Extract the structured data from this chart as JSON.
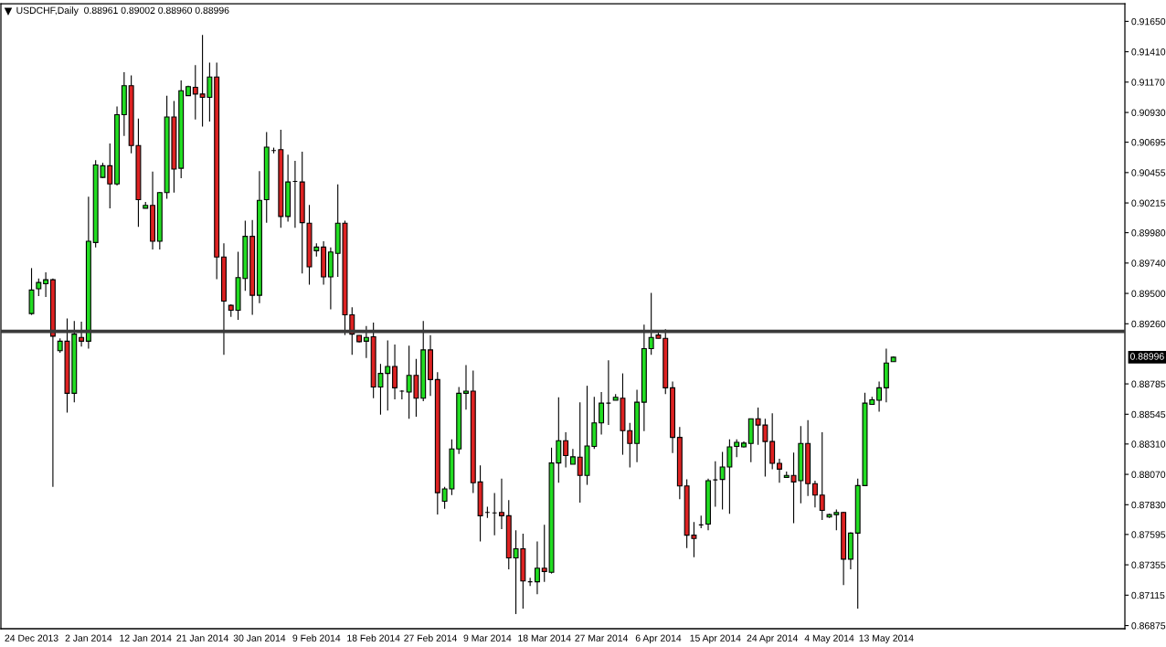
{
  "chart_data": {
    "type": "candlestick",
    "title": "USDCHF,Daily  0.88961 0.89002 0.88960 0.88996",
    "categories": [
      "24 Dec 2013",
      null,
      null,
      null,
      null,
      null,
      null,
      null,
      "2 Jan 2014",
      null,
      null,
      null,
      null,
      null,
      null,
      null,
      "12 Jan 2014",
      null,
      null,
      null,
      null,
      null,
      null,
      null,
      "21 Jan 2014",
      null,
      null,
      null,
      null,
      null,
      null,
      null,
      "30 Jan 2014",
      null,
      null,
      null,
      null,
      null,
      null,
      null,
      "9 Feb 2014",
      null,
      null,
      null,
      null,
      null,
      null,
      null,
      "18 Feb 2014",
      null,
      null,
      null,
      null,
      null,
      null,
      null,
      "27 Feb 2014",
      null,
      null,
      null,
      null,
      null,
      null,
      null,
      "9 Mar 2014",
      null,
      null,
      null,
      null,
      null,
      null,
      null,
      "18 Mar 2014",
      null,
      null,
      null,
      null,
      null,
      null,
      null,
      "27 Mar 2014",
      null,
      null,
      null,
      null,
      null,
      null,
      null,
      "6 Apr 2014",
      null,
      null,
      null,
      null,
      null,
      null,
      null,
      "15 Apr 2014",
      null,
      null,
      null,
      null,
      null,
      null,
      null,
      "24 Apr 2014",
      null,
      null,
      null,
      null,
      null,
      null,
      null,
      "4 May 2014",
      null,
      null,
      null,
      null,
      null,
      null,
      null,
      "13 May 2014",
      null,
      null,
      null,
      null,
      null,
      null,
      null,
      null,
      null,
      null,
      null,
      null,
      null,
      null,
      null,
      null,
      null,
      null,
      null,
      null,
      null,
      null,
      null,
      null,
      null,
      null,
      null,
      null,
      null,
      null,
      null,
      null,
      null
    ],
    "ohlc": [
      [
        0.89341,
        0.897,
        0.8933,
        0.89527
      ],
      [
        0.89537,
        0.89618,
        0.89478,
        0.89586
      ],
      [
        0.89576,
        0.89667,
        0.89471,
        0.89608
      ],
      [
        0.89608,
        0.89618,
        0.87971,
        0.89162
      ],
      [
        0.89047,
        0.89145,
        0.89031,
        0.89122
      ],
      [
        0.89122,
        0.89302,
        0.88558,
        0.88711
      ],
      [
        0.88711,
        0.89282,
        0.8864,
        0.89178
      ],
      [
        0.89152,
        0.89276,
        0.8908,
        0.89122
      ],
      [
        0.89122,
        0.90264,
        0.89064,
        0.89912
      ],
      [
        0.89902,
        0.90554,
        0.89863,
        0.90515
      ],
      [
        0.90417,
        0.90532,
        0.90411,
        0.90509
      ],
      [
        0.90509,
        0.90685,
        0.90173,
        0.90365
      ],
      [
        0.90365,
        0.90978,
        0.90352,
        0.90913
      ],
      [
        0.90913,
        0.91249,
        0.90744,
        0.91142
      ],
      [
        0.91142,
        0.91223,
        0.90607,
        0.90669
      ],
      [
        0.90669,
        0.90881,
        0.90026,
        0.90241
      ],
      [
        0.90173,
        0.90222,
        0.90173,
        0.90196
      ],
      [
        0.90196,
        0.90463,
        0.89847,
        0.89912
      ],
      [
        0.89912,
        0.90303,
        0.89847,
        0.90297
      ],
      [
        0.90297,
        0.91063,
        0.90248,
        0.90894
      ],
      [
        0.90894,
        0.91021,
        0.90297,
        0.90483
      ],
      [
        0.90489,
        0.91184,
        0.90411,
        0.91102
      ],
      [
        0.91063,
        0.91142,
        0.91063,
        0.91135
      ],
      [
        0.91129,
        0.91305,
        0.90874,
        0.91076
      ],
      [
        0.91076,
        0.91543,
        0.90819,
        0.9105
      ],
      [
        0.9105,
        0.91324,
        0.90858,
        0.9121
      ],
      [
        0.9121,
        0.91324,
        0.89612,
        0.89788
      ],
      [
        0.89788,
        0.89896,
        0.89015,
        0.89439
      ],
      [
        0.89406,
        0.89413,
        0.89315,
        0.89367
      ],
      [
        0.89367,
        0.8983,
        0.89292,
        0.89625
      ],
      [
        0.89618,
        0.90075,
        0.8952,
        0.89951
      ],
      [
        0.89951,
        0.90081,
        0.89331,
        0.89485
      ],
      [
        0.89485,
        0.90466,
        0.89423,
        0.90235
      ],
      [
        0.90241,
        0.90776,
        0.90059,
        0.90656
      ],
      [
        0.90629,
        0.90652,
        0.90607,
        0.90629
      ],
      [
        0.90636,
        0.90793,
        0.90019,
        0.90108
      ],
      [
        0.90108,
        0.90597,
        0.90068,
        0.90381
      ],
      [
        0.90385,
        0.90548,
        0.90019,
        0.90385
      ],
      [
        0.90381,
        0.9062,
        0.89657,
        0.90059
      ],
      [
        0.90055,
        0.90199,
        0.89569,
        0.8971
      ],
      [
        0.89837,
        0.89896,
        0.89791,
        0.89866
      ],
      [
        0.89866,
        0.89912,
        0.89569,
        0.89631
      ],
      [
        0.89631,
        0.89863,
        0.89374,
        0.89827
      ],
      [
        0.89817,
        0.90362,
        0.89631,
        0.90055
      ],
      [
        0.90055,
        0.90075,
        0.89171,
        0.89331
      ],
      [
        0.89331,
        0.8939,
        0.89015,
        0.89178
      ],
      [
        0.89168,
        0.89171,
        0.89113,
        0.89119
      ],
      [
        0.89122,
        0.89243,
        0.88989,
        0.89152
      ],
      [
        0.89158,
        0.89269,
        0.88672,
        0.8876
      ],
      [
        0.8876,
        0.88943,
        0.88542,
        0.88868
      ],
      [
        0.88868,
        0.89129,
        0.88574,
        0.88923
      ],
      [
        0.88923,
        0.89096,
        0.88662,
        0.88754
      ],
      [
        0.88728,
        0.88735,
        0.88662,
        0.88728
      ],
      [
        0.88721,
        0.89087,
        0.88509,
        0.88852
      ],
      [
        0.88852,
        0.88982,
        0.88526,
        0.88672
      ],
      [
        0.88672,
        0.89282,
        0.88649,
        0.89054
      ],
      [
        0.89054,
        0.89171,
        0.88689,
        0.88819
      ],
      [
        0.88819,
        0.88878,
        0.87752,
        0.87925
      ],
      [
        0.87857,
        0.87971,
        0.87798,
        0.87955
      ],
      [
        0.87955,
        0.88346,
        0.87906,
        0.88271
      ],
      [
        0.88271,
        0.8876,
        0.88232,
        0.88711
      ],
      [
        0.88711,
        0.88933,
        0.88581,
        0.88728
      ],
      [
        0.88728,
        0.88891,
        0.87922,
        0.88004
      ],
      [
        0.8801,
        0.88141,
        0.8754,
        0.87743
      ],
      [
        0.87769,
        0.87814,
        0.87726,
        0.87769
      ],
      [
        0.87765,
        0.87922,
        0.87589,
        0.87765
      ],
      [
        0.87769,
        0.88036,
        0.87638,
        0.87743
      ],
      [
        0.87743,
        0.87867,
        0.87319,
        0.8741
      ],
      [
        0.8741,
        0.87628,
        0.86966,
        0.87482
      ],
      [
        0.87482,
        0.87602,
        0.87009,
        0.87227
      ],
      [
        0.87221,
        0.87253,
        0.87188,
        0.87221
      ],
      [
        0.87221,
        0.8754,
        0.87123,
        0.87328
      ],
      [
        0.87328,
        0.87671,
        0.87221,
        0.87302
      ],
      [
        0.87296,
        0.88281,
        0.87286,
        0.8816
      ],
      [
        0.8816,
        0.88679,
        0.88004,
        0.88336
      ],
      [
        0.88336,
        0.88402,
        0.88124,
        0.88219
      ],
      [
        0.8815,
        0.88271,
        0.8815,
        0.88209
      ],
      [
        0.88206,
        0.8864,
        0.87847,
        0.88062
      ],
      [
        0.88062,
        0.8877,
        0.87987,
        0.88294
      ],
      [
        0.88291,
        0.88682,
        0.88271,
        0.88477
      ],
      [
        0.88477,
        0.88721,
        0.88385,
        0.88633
      ],
      [
        0.88633,
        0.88972,
        0.8846,
        0.88633
      ],
      [
        0.88656,
        0.88705,
        0.88656,
        0.88679
      ],
      [
        0.88672,
        0.88868,
        0.88225,
        0.88415
      ],
      [
        0.88415,
        0.88477,
        0.88124,
        0.88314
      ],
      [
        0.88314,
        0.88738,
        0.88167,
        0.8864
      ],
      [
        0.8864,
        0.89253,
        0.88411,
        0.89064
      ],
      [
        0.89064,
        0.89504,
        0.89015,
        0.89152
      ],
      [
        0.89171,
        0.89194,
        0.89145,
        0.89145
      ],
      [
        0.89145,
        0.89217,
        0.88705,
        0.88754
      ],
      [
        0.88754,
        0.88803,
        0.88238,
        0.88362
      ],
      [
        0.88362,
        0.88444,
        0.87873,
        0.87978
      ],
      [
        0.87978,
        0.8803,
        0.87488,
        0.87589
      ],
      [
        0.87589,
        0.87694,
        0.87416,
        0.87563
      ],
      [
        0.87671,
        0.87743,
        0.87645,
        0.87671
      ],
      [
        0.87677,
        0.88036,
        0.87628,
        0.8802
      ],
      [
        0.88026,
        0.88173,
        0.87814,
        0.88026
      ],
      [
        0.8803,
        0.88248,
        0.87792,
        0.88128
      ],
      [
        0.88128,
        0.88346,
        0.87759,
        0.88287
      ],
      [
        0.88291,
        0.88346,
        0.88206,
        0.88323
      ],
      [
        0.88287,
        0.8833,
        0.88281,
        0.88317
      ],
      [
        0.88314,
        0.88509,
        0.88167,
        0.88509
      ],
      [
        0.88509,
        0.88597,
        0.88304,
        0.8846
      ],
      [
        0.8846,
        0.88509,
        0.88053,
        0.8833
      ],
      [
        0.8833,
        0.88552,
        0.88111,
        0.88157
      ],
      [
        0.88157,
        0.88193,
        0.88004,
        0.88111
      ],
      [
        0.88046,
        0.88092,
        0.88046,
        0.88062
      ],
      [
        0.88062,
        0.88242,
        0.87684,
        0.8801
      ],
      [
        0.8802,
        0.88451,
        0.87841,
        0.88314
      ],
      [
        0.88314,
        0.88499,
        0.87899,
        0.87997
      ],
      [
        0.87997,
        0.8802,
        0.87808,
        0.87906
      ],
      [
        0.87906,
        0.88402,
        0.8771,
        0.87785
      ],
      [
        0.87733,
        0.87759,
        0.87726,
        0.87752
      ],
      [
        0.87752,
        0.87792,
        0.87628,
        0.87769
      ],
      [
        0.87769,
        0.87775,
        0.87195,
        0.874
      ],
      [
        0.874,
        0.87612,
        0.87319,
        0.87606
      ],
      [
        0.87606,
        0.88036,
        0.87009,
        0.87981
      ],
      [
        0.87981,
        0.88715,
        0.87981,
        0.88633
      ],
      [
        0.88623,
        0.88682,
        0.88623,
        0.88659
      ],
      [
        0.88656,
        0.88803,
        0.88565,
        0.88754
      ],
      [
        0.88754,
        0.89064,
        0.8864,
        0.8895
      ],
      [
        0.88961,
        0.89002,
        0.8896,
        0.88996
      ],
      null,
      null,
      null,
      null,
      null,
      null,
      null,
      null,
      null,
      null,
      null,
      null,
      null,
      null,
      null,
      null,
      null,
      null,
      null,
      null,
      null,
      null,
      null,
      null,
      null,
      null,
      null,
      null,
      null,
      null,
      null,
      null
    ],
    "colors": [
      "#22dd22",
      "#22dd22",
      "#22dd22",
      "#dd2222",
      "#22dd22",
      "#dd2222",
      "#22dd22",
      "#dd2222",
      "#22dd22",
      "#22dd22",
      "#22dd22",
      "#dd2222",
      "#22dd22",
      "#22dd22",
      "#dd2222",
      "#dd2222",
      "#22dd22",
      "#dd2222",
      "#22dd22",
      "#22dd22",
      "#dd2222",
      "#22dd22",
      "#22dd22",
      "#dd2222",
      "#dd2222",
      "#22dd22",
      "#dd2222",
      "#dd2222",
      "#dd2222",
      "#22dd22",
      "#22dd22",
      "#dd2222",
      "#22dd22",
      "#22dd22",
      "#000000",
      "#dd2222",
      "#22dd22",
      "#000000",
      "#dd2222",
      "#dd2222",
      "#22dd22",
      "#dd2222",
      "#22dd22",
      "#22dd22",
      "#dd2222",
      "#dd2222",
      "#dd2222",
      "#22dd22",
      "#dd2222",
      "#22dd22",
      "#22dd22",
      "#dd2222",
      "#000000",
      "#22dd22",
      "#dd2222",
      "#22dd22",
      "#dd2222",
      "#dd2222",
      "#22dd22",
      "#22dd22",
      "#22dd22",
      "#22dd22",
      "#dd2222",
      "#dd2222",
      "#000000",
      "#000000",
      "#dd2222",
      "#dd2222",
      "#22dd22",
      "#dd2222",
      "#000000",
      "#22dd22",
      "#dd2222",
      "#22dd22",
      "#22dd22",
      "#dd2222",
      "#22dd22",
      "#dd2222",
      "#22dd22",
      "#22dd22",
      "#22dd22",
      "#000000",
      "#22dd22",
      "#dd2222",
      "#dd2222",
      "#22dd22",
      "#22dd22",
      "#22dd22",
      "#dd2222",
      "#dd2222",
      "#dd2222",
      "#dd2222",
      "#dd2222",
      "#dd2222",
      "#000000",
      "#22dd22",
      "#000000",
      "#22dd22",
      "#22dd22",
      "#22dd22",
      "#22dd22",
      "#22dd22",
      "#dd2222",
      "#dd2222",
      "#dd2222",
      "#dd2222",
      "#22dd22",
      "#dd2222",
      "#22dd22",
      "#dd2222",
      "#dd2222",
      "#dd2222",
      "#22dd22",
      "#22dd22",
      "#dd2222",
      "#22dd22",
      "#22dd22",
      "#22dd22",
      "#22dd22",
      "#22dd22",
      "#22dd22",
      "#22dd22",
      null,
      null,
      null,
      null,
      null,
      null,
      null,
      null,
      null,
      null,
      null,
      null,
      null,
      null,
      null,
      null,
      null,
      null,
      null,
      null,
      null,
      null,
      null,
      null,
      null,
      null,
      null,
      null,
      null,
      null,
      null,
      null
    ],
    "ylim": [
      0.8685,
      0.9179
    ],
    "yticks": [
      {
        "value": 0.9165,
        "label": "0.91650"
      },
      {
        "value": 0.9141,
        "label": "0.91410"
      },
      {
        "value": 0.9117,
        "label": "0.91170"
      },
      {
        "value": 0.9093,
        "label": "0.90930"
      },
      {
        "value": 0.90695,
        "label": "0.90695"
      },
      {
        "value": 0.90455,
        "label": "0.90455"
      },
      {
        "value": 0.90215,
        "label": "0.90215"
      },
      {
        "value": 0.8998,
        "label": "0.89980"
      },
      {
        "value": 0.8974,
        "label": "0.89740"
      },
      {
        "value": 0.895,
        "label": "0.89500"
      },
      {
        "value": 0.8926,
        "label": "0.89260"
      },
      {
        "value": 0.88785,
        "label": "0.88785"
      },
      {
        "value": 0.88545,
        "label": "0.88545"
      },
      {
        "value": 0.8831,
        "label": "0.88310"
      },
      {
        "value": 0.8807,
        "label": "0.88070"
      },
      {
        "value": 0.8783,
        "label": "0.87830"
      },
      {
        "value": 0.87595,
        "label": "0.87595"
      },
      {
        "value": 0.87355,
        "label": "0.87355"
      },
      {
        "value": 0.87115,
        "label": "0.87115"
      },
      {
        "value": 0.86875,
        "label": "0.86875"
      }
    ],
    "ref_lines": [
      {
        "axis": "y",
        "value": 0.892,
        "color": "#3a3a3a"
      }
    ],
    "annotations": [
      "0.88996"
    ]
  }
}
